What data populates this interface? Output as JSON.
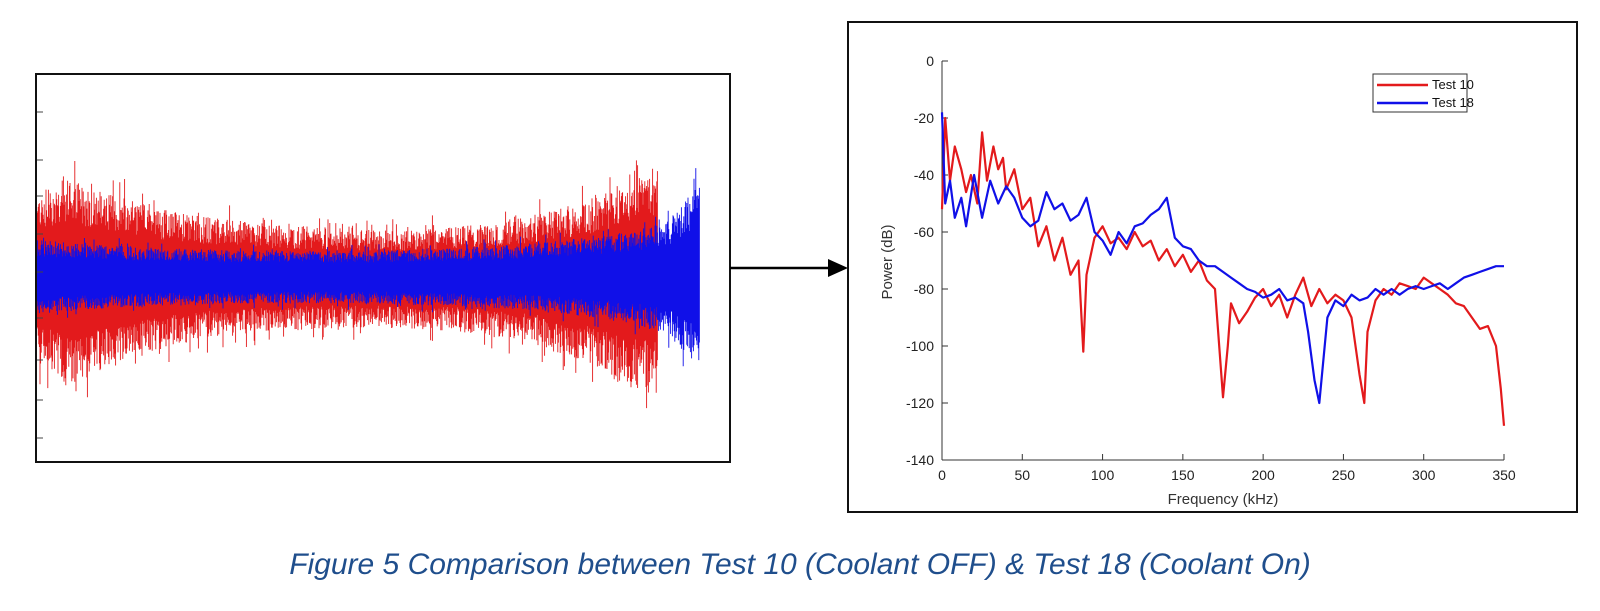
{
  "caption": "Figure 5 Comparison between Test 10 (Coolant OFF) & Test 18 (Coolant On)",
  "colors": {
    "test10": "#e31a1c",
    "test18": "#1010e8",
    "caption": "#1f4e8c"
  },
  "chart_data": [
    {
      "type": "line",
      "title": "",
      "xlabel": "",
      "ylabel": "",
      "series": [
        {
          "name": "Test 10",
          "color": "#e31a1c",
          "envelope_upper": [
            0.45,
            0.52,
            0.45,
            0.4,
            0.35,
            0.32,
            0.3,
            0.28,
            0.27,
            0.26,
            0.25,
            0.25,
            0.26,
            0.27,
            0.29,
            0.32,
            0.36,
            0.42,
            0.5,
            0.6
          ],
          "envelope_lower": [
            -0.45,
            -0.58,
            -0.5,
            -0.42,
            -0.37,
            -0.33,
            -0.31,
            -0.29,
            -0.28,
            -0.27,
            -0.27,
            -0.27,
            -0.28,
            -0.29,
            -0.31,
            -0.34,
            -0.4,
            -0.48,
            -0.58,
            -0.62
          ]
        },
        {
          "name": "Test 18",
          "color": "#1010e8",
          "envelope_upper": [
            0.2,
            0.18,
            0.17,
            0.16,
            0.15,
            0.15,
            0.14,
            0.14,
            0.14,
            0.14,
            0.14,
            0.14,
            0.15,
            0.15,
            0.16,
            0.17,
            0.18,
            0.2,
            0.22,
            0.25,
            0.3,
            0.5
          ],
          "envelope_lower": [
            -0.2,
            -0.18,
            -0.17,
            -0.16,
            -0.15,
            -0.15,
            -0.14,
            -0.14,
            -0.14,
            -0.14,
            -0.14,
            -0.14,
            -0.15,
            -0.15,
            -0.16,
            -0.17,
            -0.18,
            -0.2,
            -0.22,
            -0.25,
            -0.3,
            -0.5
          ]
        }
      ]
    },
    {
      "type": "line",
      "title": "",
      "xlabel": "Frequency (kHz)",
      "ylabel": "Power (dB)",
      "xlim": [
        0,
        350
      ],
      "ylim": [
        -140,
        0
      ],
      "xticks": [
        "0",
        "50",
        "100",
        "150",
        "200",
        "250",
        "300",
        "350"
      ],
      "yticks": [
        "0",
        "-20",
        "-40",
        "-60",
        "-80",
        "-100",
        "-120",
        "-140"
      ],
      "legend_position": "top-right",
      "series": [
        {
          "name": "Test 10",
          "color": "#e31a1c",
          "x": [
            0,
            2,
            5,
            8,
            12,
            15,
            18,
            22,
            25,
            28,
            32,
            35,
            38,
            40,
            45,
            50,
            55,
            60,
            65,
            70,
            75,
            80,
            85,
            88,
            90,
            95,
            100,
            105,
            110,
            115,
            120,
            125,
            130,
            135,
            140,
            145,
            150,
            155,
            160,
            165,
            170,
            175,
            178,
            180,
            185,
            190,
            195,
            200,
            205,
            210,
            215,
            220,
            225,
            230,
            235,
            240,
            245,
            250,
            255,
            260,
            263,
            265,
            270,
            275,
            280,
            285,
            290,
            295,
            300,
            305,
            310,
            315,
            320,
            325,
            330,
            335,
            340,
            345,
            348,
            350
          ],
          "y": [
            -52,
            -20,
            -42,
            -30,
            -38,
            -46,
            -40,
            -50,
            -25,
            -42,
            -30,
            -38,
            -34,
            -45,
            -38,
            -52,
            -48,
            -65,
            -58,
            -70,
            -62,
            -75,
            -70,
            -102,
            -75,
            -62,
            -58,
            -64,
            -62,
            -66,
            -60,
            -65,
            -63,
            -70,
            -66,
            -72,
            -68,
            -74,
            -70,
            -77,
            -80,
            -118,
            -100,
            -85,
            -92,
            -88,
            -83,
            -80,
            -86,
            -82,
            -90,
            -82,
            -76,
            -86,
            -80,
            -85,
            -82,
            -84,
            -90,
            -110,
            -120,
            -95,
            -84,
            -80,
            -82,
            -78,
            -79,
            -80,
            -76,
            -78,
            -80,
            -82,
            -85,
            -86,
            -90,
            -94,
            -93,
            -100,
            -115,
            -128
          ]
        },
        {
          "name": "Test 18",
          "color": "#1010e8",
          "x": [
            0,
            2,
            5,
            8,
            12,
            15,
            20,
            25,
            30,
            35,
            40,
            45,
            50,
            55,
            60,
            65,
            70,
            75,
            80,
            85,
            90,
            95,
            100,
            105,
            110,
            115,
            120,
            125,
            130,
            135,
            140,
            145,
            150,
            155,
            160,
            165,
            170,
            175,
            180,
            185,
            190,
            195,
            200,
            205,
            210,
            215,
            220,
            225,
            228,
            232,
            235,
            240,
            245,
            250,
            255,
            260,
            265,
            270,
            275,
            280,
            285,
            290,
            295,
            300,
            305,
            310,
            315,
            320,
            325,
            330,
            335,
            340,
            345,
            350
          ],
          "y": [
            -18,
            -50,
            -42,
            -55,
            -48,
            -58,
            -40,
            -55,
            -42,
            -50,
            -44,
            -48,
            -55,
            -58,
            -56,
            -46,
            -52,
            -50,
            -56,
            -54,
            -48,
            -60,
            -63,
            -68,
            -60,
            -64,
            -58,
            -57,
            -54,
            -52,
            -48,
            -62,
            -65,
            -66,
            -70,
            -72,
            -72,
            -74,
            -76,
            -78,
            -80,
            -81,
            -83,
            -82,
            -80,
            -84,
            -83,
            -85,
            -95,
            -112,
            -120,
            -90,
            -84,
            -86,
            -82,
            -84,
            -83,
            -80,
            -82,
            -80,
            -82,
            -80,
            -79,
            -80,
            -79,
            -78,
            -80,
            -78,
            -76,
            -75,
            -74,
            -73,
            -72,
            -72
          ]
        }
      ]
    }
  ]
}
